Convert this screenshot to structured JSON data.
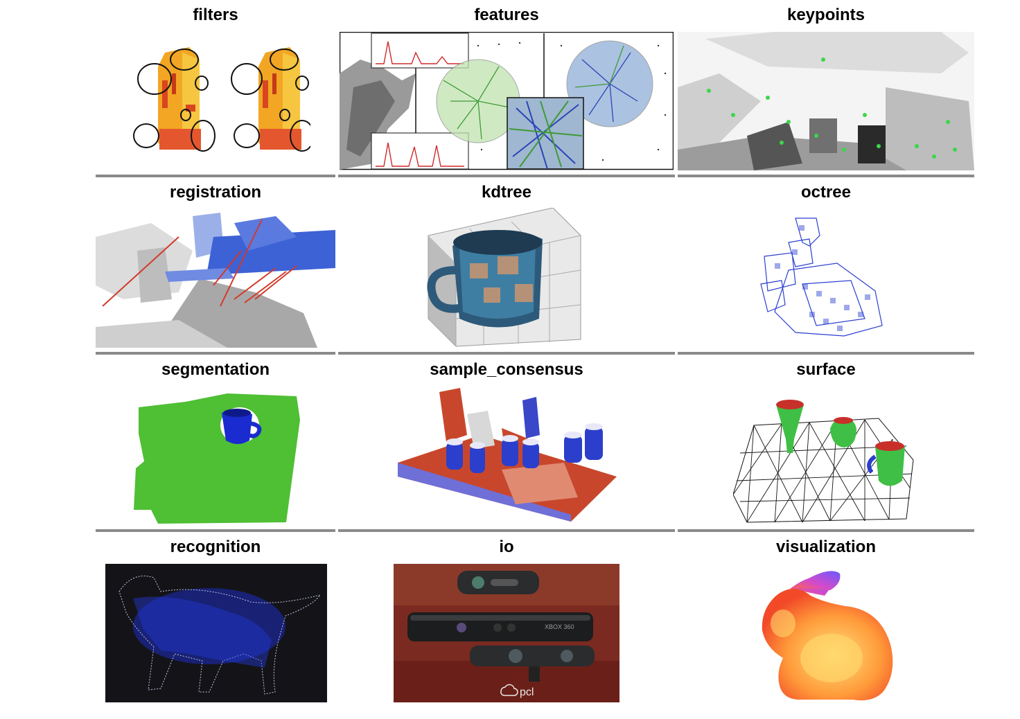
{
  "modules": [
    {
      "id": "filters",
      "title": "filters"
    },
    {
      "id": "features",
      "title": "features"
    },
    {
      "id": "keypoints",
      "title": "keypoints"
    },
    {
      "id": "registration",
      "title": "registration"
    },
    {
      "id": "kdtree",
      "title": "kdtree"
    },
    {
      "id": "octree",
      "title": "octree"
    },
    {
      "id": "segmentation",
      "title": "segmentation"
    },
    {
      "id": "sample_consensus",
      "title": "sample_consensus"
    },
    {
      "id": "surface",
      "title": "surface"
    },
    {
      "id": "recognition",
      "title": "recognition"
    },
    {
      "id": "io",
      "title": "io"
    },
    {
      "id": "visualization",
      "title": "visualization"
    }
  ],
  "io_photo": {
    "device_text": "XBOX 360",
    "logo_text": "pcl"
  },
  "colors": {
    "separator": "#8a8a8a",
    "filters_orange": "#f2a624",
    "features_green": "#5fb04a",
    "points_blue": "#2238d0",
    "segmentation_green": "#4fbf34",
    "consensus_red": "#c8472c",
    "recognition_bg": "#141418"
  }
}
